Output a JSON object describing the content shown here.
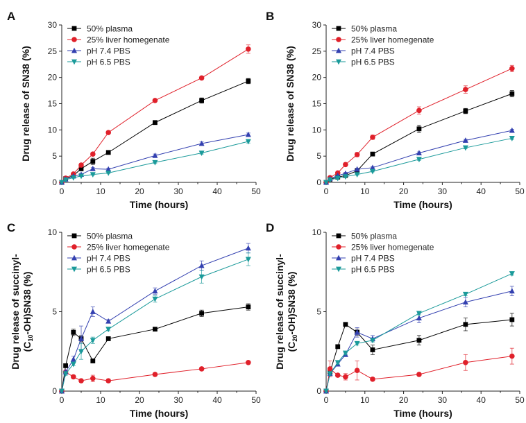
{
  "figure": {
    "panels": [
      "A",
      "B",
      "C",
      "D"
    ]
  },
  "chart_data": [
    {
      "panel": "A",
      "type": "line",
      "xlabel": "Time (hours)",
      "ylabel": "Drug release of SN38 (%)",
      "xlim": [
        0,
        50
      ],
      "ylim": [
        0,
        30
      ],
      "xticks": [
        0,
        10,
        20,
        30,
        40,
        50
      ],
      "yticks": [
        0,
        5,
        10,
        15,
        20,
        25,
        30
      ],
      "x": [
        0,
        1,
        3,
        5,
        8,
        12,
        24,
        36,
        48
      ],
      "series": [
        {
          "name": "50% plasma",
          "color": "#000000",
          "marker": "square",
          "values": [
            0,
            0.7,
            1.3,
            2.6,
            4.0,
            5.7,
            11.4,
            15.6,
            19.3
          ],
          "errors": [
            0,
            0.2,
            0.3,
            0.4,
            0.6,
            0.3,
            0.3,
            0.5,
            0.5
          ]
        },
        {
          "name": "25% liver homegenate",
          "color": "#e0202a",
          "marker": "circle",
          "values": [
            0,
            0.8,
            1.6,
            3.3,
            5.4,
            9.5,
            15.6,
            19.9,
            25.4
          ],
          "errors": [
            0,
            0.2,
            0.2,
            0.3,
            0.3,
            0.2,
            0.2,
            0.3,
            0.8
          ]
        },
        {
          "name": "pH 7.4 PBS",
          "color": "#3340b0",
          "marker": "triangle-up",
          "values": [
            0,
            0.6,
            1.2,
            1.5,
            2.6,
            2.5,
            5.1,
            7.4,
            9.1
          ],
          "errors": [
            0,
            0.1,
            0.2,
            0.2,
            0.2,
            0.2,
            0.3,
            0.3,
            0.3
          ]
        },
        {
          "name": "pH 6.5 PBS",
          "color": "#1a9a9a",
          "marker": "triangle-down",
          "values": [
            0,
            0.5,
            0.9,
            1.2,
            1.5,
            1.8,
            3.8,
            5.6,
            7.8
          ],
          "errors": [
            0,
            0.1,
            0.1,
            0.1,
            0.1,
            0.1,
            0.2,
            0.2,
            0.3
          ]
        }
      ]
    },
    {
      "panel": "B",
      "type": "line",
      "xlabel": "Time (hours)",
      "ylabel": "Drug release of SN38 (%)",
      "xlim": [
        0,
        50
      ],
      "ylim": [
        0,
        30
      ],
      "xticks": [
        0,
        10,
        20,
        30,
        40,
        50
      ],
      "yticks": [
        0,
        5,
        10,
        15,
        20,
        25,
        30
      ],
      "x": [
        0,
        1,
        3,
        5,
        8,
        12,
        24,
        36,
        48
      ],
      "series": [
        {
          "name": "50% plasma",
          "color": "#000000",
          "marker": "square",
          "values": [
            0,
            0.6,
            1.0,
            1.3,
            2.2,
            5.4,
            10.2,
            13.6,
            16.9
          ],
          "errors": [
            0,
            0.1,
            0.2,
            0.2,
            0.3,
            0.2,
            0.7,
            0.5,
            0.6
          ]
        },
        {
          "name": "25% liver homegenate",
          "color": "#e0202a",
          "marker": "circle",
          "values": [
            0,
            0.9,
            1.8,
            3.4,
            5.3,
            8.6,
            13.7,
            17.7,
            21.7
          ],
          "errors": [
            0,
            0.2,
            0.2,
            0.3,
            0.4,
            0.4,
            0.7,
            0.7,
            0.6
          ]
        },
        {
          "name": "pH 7.4 PBS",
          "color": "#3340b0",
          "marker": "triangle-up",
          "values": [
            0,
            0.7,
            1.3,
            1.7,
            2.5,
            2.8,
            5.6,
            8.0,
            9.9
          ],
          "errors": [
            0,
            0.1,
            0.1,
            0.2,
            0.2,
            0.2,
            0.2,
            0.2,
            0.2
          ]
        },
        {
          "name": "pH 6.5 PBS",
          "color": "#1a9a9a",
          "marker": "triangle-down",
          "values": [
            0,
            0.5,
            0.8,
            1.1,
            1.5,
            2.1,
            4.4,
            6.6,
            8.4
          ],
          "errors": [
            0,
            0.1,
            0.1,
            0.1,
            0.1,
            0.1,
            0.2,
            0.2,
            0.2
          ]
        }
      ]
    },
    {
      "panel": "C",
      "type": "line",
      "xlabel": "Time (hours)",
      "ylabel_line1": "Drug release of succinyl-",
      "ylabel_line2_pre": "(C",
      "ylabel_line2_sub": "10",
      "ylabel_line2_post": "-OH)SN38 (%)",
      "xlim": [
        0,
        50
      ],
      "ylim": [
        0,
        10
      ],
      "xticks": [
        0,
        10,
        20,
        30,
        40,
        50
      ],
      "yticks": [
        0,
        5,
        10
      ],
      "x": [
        0,
        1,
        3,
        5,
        8,
        12,
        24,
        36,
        48
      ],
      "series": [
        {
          "name": "50% plasma",
          "color": "#000000",
          "marker": "square",
          "values": [
            0,
            1.6,
            3.7,
            3.3,
            1.9,
            3.3,
            3.9,
            4.9,
            5.3
          ],
          "errors": [
            0,
            0.1,
            0.2,
            0.2,
            0.1,
            0.1,
            0.1,
            0.2,
            0.2
          ]
        },
        {
          "name": "25% liver homegenate",
          "color": "#e0202a",
          "marker": "circle",
          "values": [
            0,
            1.2,
            0.9,
            0.65,
            0.8,
            0.65,
            1.05,
            1.4,
            1.8
          ],
          "errors": [
            0,
            0.1,
            0.1,
            0.1,
            0.2,
            0.1,
            0.1,
            0.1,
            0.1
          ]
        },
        {
          "name": "pH 7.4 PBS",
          "color": "#3340b0",
          "marker": "triangle-up",
          "values": [
            0,
            1.2,
            2.0,
            3.3,
            5.0,
            4.4,
            6.3,
            7.9,
            9.0
          ],
          "errors": [
            0,
            0.1,
            0.2,
            0.8,
            0.3,
            0.1,
            0.2,
            0.3,
            0.3
          ]
        },
        {
          "name": "pH 6.5 PBS",
          "color": "#1a9a9a",
          "marker": "triangle-down",
          "values": [
            0,
            1.1,
            1.7,
            2.5,
            3.2,
            3.9,
            5.8,
            7.2,
            8.3
          ],
          "errors": [
            0,
            0.1,
            0.1,
            0.5,
            0.2,
            0.1,
            0.2,
            0.4,
            0.4
          ]
        }
      ]
    },
    {
      "panel": "D",
      "type": "line",
      "xlabel": "Time (hours)",
      "ylabel_line1": "Drug release of succinyl-",
      "ylabel_line2_pre": "(C",
      "ylabel_line2_sub": "20",
      "ylabel_line2_post": "-OH)SN38 (%)",
      "xlim": [
        0,
        50
      ],
      "ylim": [
        0,
        10
      ],
      "xticks": [
        0,
        10,
        20,
        30,
        40,
        50
      ],
      "yticks": [
        0,
        5,
        10
      ],
      "x": [
        0,
        1,
        3,
        5,
        8,
        12,
        24,
        36,
        48
      ],
      "series": [
        {
          "name": "50% plasma",
          "color": "#000000",
          "marker": "square",
          "values": [
            0,
            1.2,
            2.8,
            4.2,
            3.7,
            2.6,
            3.2,
            4.2,
            4.5
          ],
          "errors": [
            0,
            0.1,
            0.1,
            0.1,
            0.2,
            0.3,
            0.3,
            0.4,
            0.4
          ]
        },
        {
          "name": "25% liver homegenate",
          "color": "#e0202a",
          "marker": "circle",
          "values": [
            0,
            1.4,
            1.0,
            0.9,
            1.3,
            0.75,
            1.05,
            1.8,
            2.2
          ],
          "errors": [
            0,
            0.5,
            0.1,
            0.2,
            0.6,
            0.1,
            0.1,
            0.5,
            0.5
          ]
        },
        {
          "name": "pH 7.4 PBS",
          "color": "#3340b0",
          "marker": "triangle-up",
          "values": [
            0,
            1.1,
            1.7,
            2.3,
            3.7,
            3.3,
            4.6,
            5.6,
            6.3
          ],
          "errors": [
            0,
            0.1,
            0.1,
            0.1,
            0.3,
            0.2,
            0.3,
            0.3,
            0.3
          ]
        },
        {
          "name": "pH 6.5 PBS",
          "color": "#1a9a9a",
          "marker": "triangle-down",
          "values": [
            0,
            1.1,
            1.8,
            2.4,
            3.0,
            3.2,
            4.9,
            6.1,
            7.4
          ],
          "errors": [
            0,
            0.1,
            0.1,
            0.1,
            0.1,
            0.1,
            0.1,
            0.1,
            0.1
          ]
        }
      ]
    }
  ]
}
